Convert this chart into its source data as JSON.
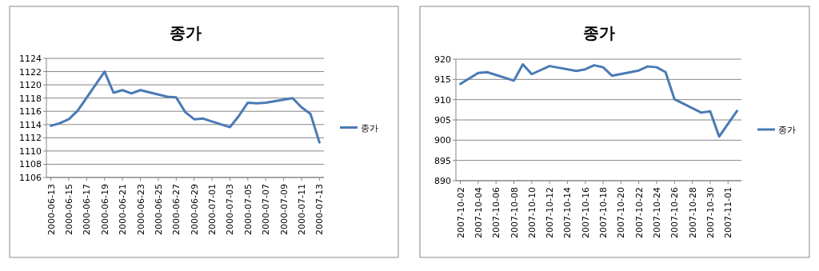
{
  "chart_data": [
    {
      "type": "line",
      "title": "종가",
      "x": [
        "2000-06-13",
        "2000-06-14",
        "2000-06-15",
        "2000-06-16",
        "2000-06-19",
        "2000-06-20",
        "2000-06-21",
        "2000-06-22",
        "2000-06-23",
        "2000-06-26",
        "2000-06-27",
        "2000-06-28",
        "2000-06-29",
        "2000-06-30",
        "2000-07-03",
        "2000-07-04",
        "2000-07-05",
        "2000-07-06",
        "2000-07-07",
        "2000-07-10",
        "2000-07-11",
        "2000-07-12",
        "2000-07-13"
      ],
      "series": [
        {
          "name": "종가",
          "color": "#4a7ab5",
          "values": [
            1113.8,
            1114.2,
            1114.8,
            1116.1,
            1122.0,
            1118.8,
            1119.2,
            1118.7,
            1119.2,
            1118.2,
            1118.1,
            1115.9,
            1114.8,
            1114.9,
            1113.6,
            1115.3,
            1117.3,
            1117.2,
            1117.3,
            1118.0,
            1116.6,
            1115.6,
            1111.3
          ]
        }
      ],
      "xlim": [
        "2000-06-12T12:00",
        "2000-07-13T12:00"
      ],
      "xticks": [
        "2000-06-13",
        "2000-06-15",
        "2000-06-17",
        "2000-06-19",
        "2000-06-21",
        "2000-06-23",
        "2000-06-25",
        "2000-06-27",
        "2000-06-29",
        "2000-07-01",
        "2000-07-03",
        "2000-07-05",
        "2000-07-07",
        "2000-07-09",
        "2000-07-11",
        "2000-07-13"
      ],
      "ylim": [
        1106,
        1124
      ],
      "yticks": [
        1106,
        1108,
        1110,
        1112,
        1114,
        1116,
        1118,
        1120,
        1122,
        1124
      ],
      "grid": "y",
      "legend": "right"
    },
    {
      "type": "line",
      "title": "종가",
      "x": [
        "2007-10-02",
        "2007-10-04",
        "2007-10-05",
        "2007-10-08",
        "2007-10-09",
        "2007-10-10",
        "2007-10-12",
        "2007-10-15",
        "2007-10-16",
        "2007-10-17",
        "2007-10-18",
        "2007-10-19",
        "2007-10-22",
        "2007-10-23",
        "2007-10-24",
        "2007-10-25",
        "2007-10-26",
        "2007-10-29",
        "2007-10-30",
        "2007-10-31",
        "2007-11-02"
      ],
      "series": [
        {
          "name": "종가",
          "color": "#4a7ab5",
          "values": [
            913.9,
            916.6,
            916.8,
            914.7,
            918.7,
            916.3,
            918.3,
            917.1,
            917.5,
            918.5,
            918.0,
            915.9,
            917.2,
            918.2,
            918.0,
            916.8,
            910.1,
            906.8,
            907.1,
            900.9,
            907.2
          ]
        }
      ],
      "xlim": [
        "2007-10-01T12:00",
        "2007-11-02T12:00"
      ],
      "xticks": [
        "2007-10-02",
        "2007-10-04",
        "2007-10-06",
        "2007-10-08",
        "2007-10-10",
        "2007-10-12",
        "2007-10-14",
        "2007-10-16",
        "2007-10-18",
        "2007-10-20",
        "2007-10-22",
        "2007-10-24",
        "2007-10-26",
        "2007-10-28",
        "2007-10-30",
        "2007-11-01"
      ],
      "ylim": [
        890,
        920
      ],
      "yticks": [
        890,
        895,
        900,
        905,
        910,
        915,
        920
      ],
      "grid": "y",
      "legend": "right"
    }
  ]
}
